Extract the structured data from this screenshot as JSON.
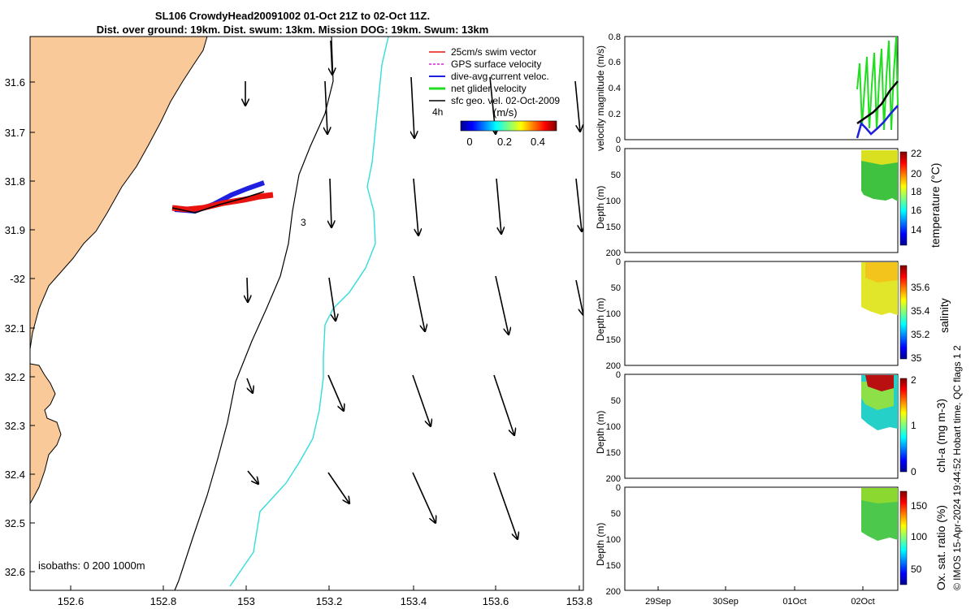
{
  "title_line1": "SL106 CrowdyHead20091002 01-Oct 21Z to 02-Oct 11Z.",
  "title_line2": "Dist. over ground: 19km. Dist. swum: 13km. Mission DOG: 19km. Swum: 13km",
  "map": {
    "lon_ticks": [
      "152.6",
      "152.8",
      "153",
      "153.2",
      "153.4",
      "153.6",
      "153.8"
    ],
    "lat_ticks": [
      "31.6",
      "31.7",
      "31.8",
      "31.9",
      "-32",
      "32.1",
      "32.2",
      "32.3",
      "32.4",
      "32.5",
      "32.6"
    ],
    "isobath_label": "isobaths: 0   200  1000m",
    "contour_label": "3",
    "legend": [
      {
        "label": "25cm/s swim vector",
        "color": "#e8130e"
      },
      {
        "label": "GPS surface velocity",
        "color": "#e020e0"
      },
      {
        "label": "dive-avg current veloc.",
        "color": "#1f1fe0"
      },
      {
        "label": "net glider velocity",
        "color": "#22dd22"
      },
      {
        "label": "sfc geo. vel. 02-Oct-2009",
        "color": "#000000"
      }
    ],
    "time_label": "4h",
    "colorbar": {
      "unit": "(m/s)",
      "ticks": [
        "0",
        "0.2",
        "0.4"
      ]
    }
  },
  "panels": {
    "velocity": {
      "ylabel": "velocity magnitude (m/s)",
      "ticks": [
        "0.8",
        "0.6",
        "0.4",
        "0.2",
        "0"
      ]
    },
    "depth_ticks": [
      "0",
      "50",
      "100",
      "150",
      "200"
    ],
    "depth_ylabel": "Depth (m)",
    "temperature": {
      "label": "temperature (°C)",
      "ticks": [
        "22",
        "20",
        "18",
        "16",
        "14"
      ]
    },
    "salinity": {
      "label": "salinity",
      "ticks": [
        "35.6",
        "35.4",
        "35.2",
        "35"
      ]
    },
    "chla": {
      "label": "chl-a (mg m-3)",
      "ticks": [
        "2",
        "1",
        "0"
      ]
    },
    "oxygen": {
      "label": "Ox. sat. ratio (%)",
      "ticks": [
        "150",
        "100",
        "50"
      ]
    },
    "time_ticks": [
      "29Sep",
      "30Sep",
      "01Oct",
      "02Oct"
    ]
  },
  "credit": "© IMOS 15-Apr-2024 19:44:52 Hobart time. QC flags 1  2"
}
